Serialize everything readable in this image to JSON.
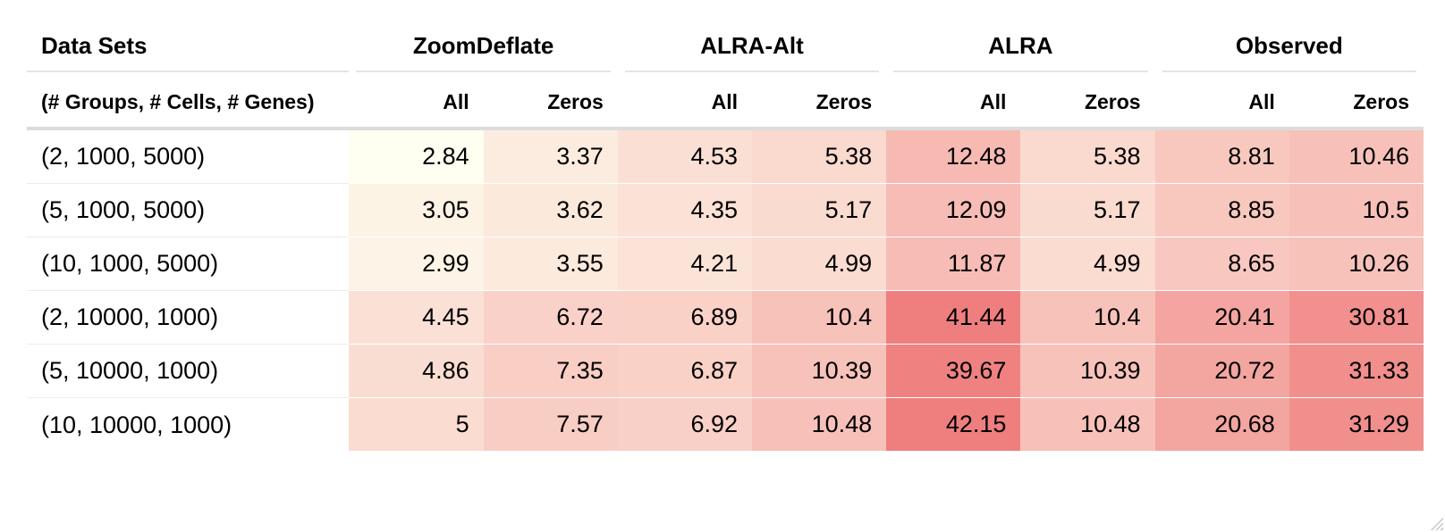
{
  "chart_data": {
    "type": "table",
    "header": {
      "row_label": "Data Sets",
      "row_sublabel": "(# Groups, # Cells, # Genes)",
      "groups": [
        {
          "name": "ZoomDeflate",
          "subcolumns": [
            "All",
            "Zeros"
          ]
        },
        {
          "name": "ALRA-Alt",
          "subcolumns": [
            "All",
            "Zeros"
          ]
        },
        {
          "name": "ALRA",
          "subcolumns": [
            "All",
            "Zeros"
          ]
        },
        {
          "name": "Observed",
          "subcolumns": [
            "All",
            "Zeros"
          ]
        }
      ]
    },
    "rows": [
      {
        "label": "(2, 1000, 5000)",
        "display": [
          "2.84",
          "3.37",
          "4.53",
          "5.38",
          "12.48",
          "5.38",
          "8.81",
          "10.46"
        ],
        "values": [
          2.84,
          3.37,
          4.53,
          5.38,
          12.48,
          5.38,
          8.81,
          10.46
        ]
      },
      {
        "label": "(5, 1000, 5000)",
        "display": [
          "3.05",
          "3.62",
          "4.35",
          "5.17",
          "12.09",
          "5.17",
          "8.85",
          "10.5"
        ],
        "values": [
          3.05,
          3.62,
          4.35,
          5.17,
          12.09,
          5.17,
          8.85,
          10.5
        ]
      },
      {
        "label": "(10, 1000, 5000)",
        "display": [
          "2.99",
          "3.55",
          "4.21",
          "4.99",
          "11.87",
          "4.99",
          "8.65",
          "10.26"
        ],
        "values": [
          2.99,
          3.55,
          4.21,
          4.99,
          11.87,
          4.99,
          8.65,
          10.26
        ]
      },
      {
        "label": "(2, 10000, 1000)",
        "display": [
          "4.45",
          "6.72",
          "6.89",
          "10.4",
          "41.44",
          "10.4",
          "20.41",
          "30.81"
        ],
        "values": [
          4.45,
          6.72,
          6.89,
          10.4,
          41.44,
          10.4,
          20.41,
          30.81
        ]
      },
      {
        "label": "(5, 10000, 1000)",
        "display": [
          "4.86",
          "7.35",
          "6.87",
          "10.39",
          "39.67",
          "10.39",
          "20.72",
          "31.33"
        ],
        "values": [
          4.86,
          7.35,
          6.87,
          10.39,
          39.67,
          10.39,
          20.72,
          31.33
        ]
      },
      {
        "label": "(10, 10000, 1000)",
        "display": [
          "5",
          "7.57",
          "6.92",
          "10.48",
          "42.15",
          "10.48",
          "20.68",
          "31.29"
        ],
        "values": [
          5,
          7.57,
          6.92,
          10.48,
          42.15,
          10.48,
          20.68,
          31.29
        ]
      }
    ],
    "color_scale": {
      "min_value": 2.84,
      "max_value": 42.15,
      "low_color": "#fefff0",
      "high_color": "#ef7e7e"
    }
  }
}
